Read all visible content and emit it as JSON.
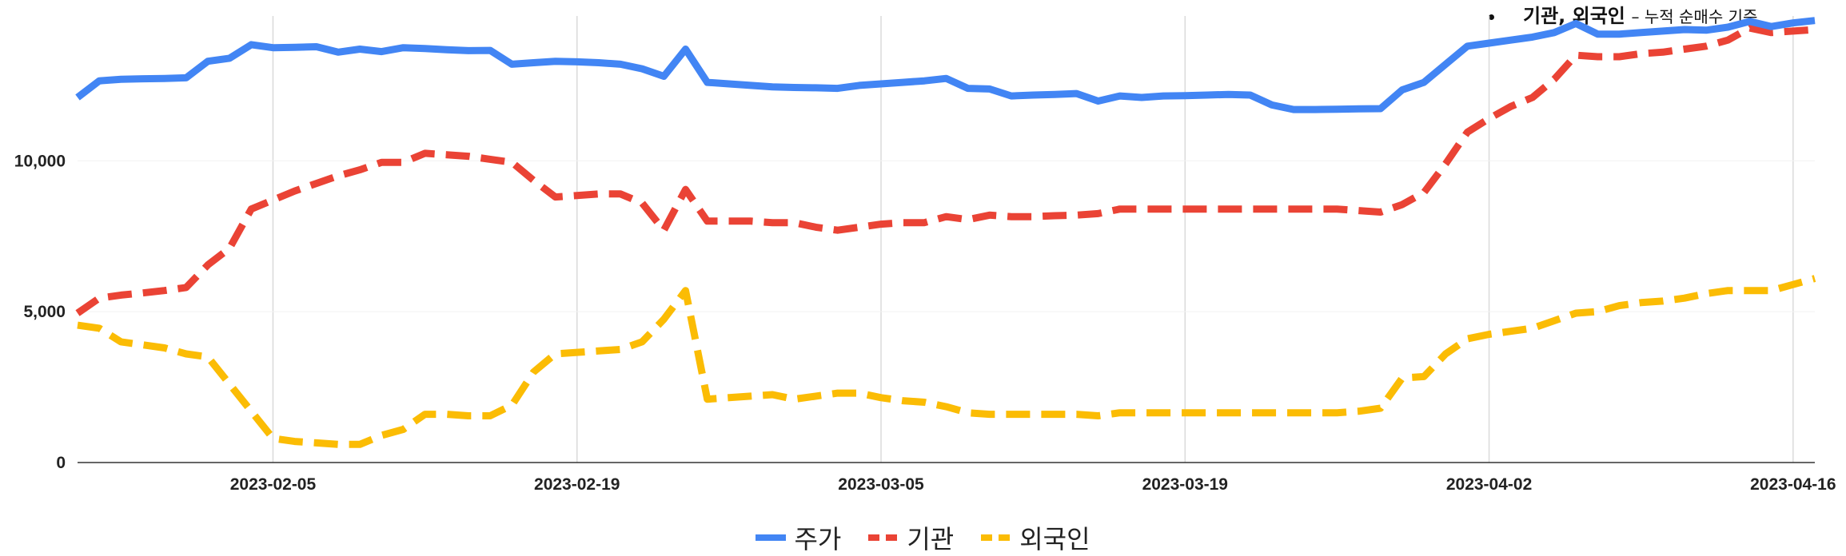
{
  "note": {
    "title": "기관, 외국인",
    "subtitle": "– 누적 순매수 기준"
  },
  "legend": {
    "price": "주가",
    "inst": "기관",
    "foreign": "외국인"
  },
  "colors": {
    "price": "#4285F4",
    "inst": "#EA4335",
    "foreign": "#FBBC04"
  },
  "chart_data": {
    "type": "line",
    "title": "",
    "xlabel": "",
    "ylabel": "",
    "x_range": [
      "2023-01-27",
      "2023-04-17"
    ],
    "ylim": [
      0,
      14800
    ],
    "y_ticks": [
      {
        "value": 0,
        "label": "0"
      },
      {
        "value": 5000,
        "label": "5,000"
      },
      {
        "value": 10000,
        "label": "10,000"
      }
    ],
    "x_ticks": [
      "2023-02-05",
      "2023-02-19",
      "2023-03-05",
      "2023-03-19",
      "2023-04-02",
      "2023-04-16"
    ],
    "grid": "vertical",
    "legend_position": "bottom",
    "series": [
      {
        "name": "주가",
        "color": "#4285F4",
        "style": "solid",
        "points": [
          [
            "2023-01-27",
            12100
          ],
          [
            "2023-01-28",
            12650
          ],
          [
            "2023-01-29",
            12700
          ],
          [
            "2023-01-30",
            12720
          ],
          [
            "2023-01-31",
            12730
          ],
          [
            "2023-02-01",
            12750
          ],
          [
            "2023-02-02",
            13300
          ],
          [
            "2023-02-03",
            13400
          ],
          [
            "2023-02-04",
            13850
          ],
          [
            "2023-02-05",
            13750
          ],
          [
            "2023-02-06",
            13760
          ],
          [
            "2023-02-07",
            13780
          ],
          [
            "2023-02-08",
            13600
          ],
          [
            "2023-02-09",
            13700
          ],
          [
            "2023-02-10",
            13620
          ],
          [
            "2023-02-11",
            13750
          ],
          [
            "2023-02-12",
            13720
          ],
          [
            "2023-02-13",
            13680
          ],
          [
            "2023-02-14",
            13650
          ],
          [
            "2023-02-15",
            13660
          ],
          [
            "2023-02-16",
            13200
          ],
          [
            "2023-02-17",
            13250
          ],
          [
            "2023-02-18",
            13300
          ],
          [
            "2023-02-19",
            13280
          ],
          [
            "2023-02-20",
            13250
          ],
          [
            "2023-02-21",
            13200
          ],
          [
            "2023-02-22",
            13050
          ],
          [
            "2023-02-23",
            12800
          ],
          [
            "2023-02-24",
            13700
          ],
          [
            "2023-02-25",
            12600
          ],
          [
            "2023-02-26",
            12550
          ],
          [
            "2023-02-27",
            12500
          ],
          [
            "2023-02-28",
            12450
          ],
          [
            "2023-03-01",
            12430
          ],
          [
            "2023-03-02",
            12420
          ],
          [
            "2023-03-03",
            12400
          ],
          [
            "2023-03-04",
            12500
          ],
          [
            "2023-03-05",
            12550
          ],
          [
            "2023-03-06",
            12600
          ],
          [
            "2023-03-07",
            12650
          ],
          [
            "2023-03-08",
            12730
          ],
          [
            "2023-03-09",
            12400
          ],
          [
            "2023-03-10",
            12380
          ],
          [
            "2023-03-11",
            12150
          ],
          [
            "2023-03-12",
            12180
          ],
          [
            "2023-03-13",
            12200
          ],
          [
            "2023-03-14",
            12230
          ],
          [
            "2023-03-15",
            11980
          ],
          [
            "2023-03-16",
            12150
          ],
          [
            "2023-03-17",
            12100
          ],
          [
            "2023-03-18",
            12150
          ],
          [
            "2023-03-19",
            12160
          ],
          [
            "2023-03-20",
            12180
          ],
          [
            "2023-03-21",
            12200
          ],
          [
            "2023-03-22",
            12180
          ],
          [
            "2023-03-23",
            11850
          ],
          [
            "2023-03-24",
            11700
          ],
          [
            "2023-03-25",
            11700
          ],
          [
            "2023-03-26",
            11710
          ],
          [
            "2023-03-27",
            11720
          ],
          [
            "2023-03-28",
            11730
          ],
          [
            "2023-03-29",
            12350
          ],
          [
            "2023-03-30",
            12600
          ],
          [
            "2023-03-31",
            13200
          ],
          [
            "2023-04-01",
            13800
          ],
          [
            "2023-04-02",
            13900
          ],
          [
            "2023-04-03",
            14000
          ],
          [
            "2023-04-04",
            14100
          ],
          [
            "2023-04-05",
            14250
          ],
          [
            "2023-04-06",
            14550
          ],
          [
            "2023-04-07",
            14200
          ],
          [
            "2023-04-08",
            14200
          ],
          [
            "2023-04-09",
            14250
          ],
          [
            "2023-04-10",
            14300
          ],
          [
            "2023-04-11",
            14350
          ],
          [
            "2023-04-12",
            14330
          ],
          [
            "2023-04-13",
            14430
          ],
          [
            "2023-04-14",
            14620
          ],
          [
            "2023-04-15",
            14450
          ],
          [
            "2023-04-16",
            14570
          ],
          [
            "2023-04-17",
            14650
          ]
        ]
      },
      {
        "name": "기관",
        "color": "#EA4335",
        "style": "dashed",
        "points": [
          [
            "2023-01-27",
            4950
          ],
          [
            "2023-01-28",
            5450
          ],
          [
            "2023-01-29",
            5550
          ],
          [
            "2023-01-30",
            5620
          ],
          [
            "2023-01-31",
            5700
          ],
          [
            "2023-02-01",
            5800
          ],
          [
            "2023-02-02",
            6550
          ],
          [
            "2023-02-03",
            7100
          ],
          [
            "2023-02-04",
            8400
          ],
          [
            "2023-02-05",
            8700
          ],
          [
            "2023-02-06",
            9000
          ],
          [
            "2023-02-07",
            9250
          ],
          [
            "2023-02-08",
            9500
          ],
          [
            "2023-02-09",
            9700
          ],
          [
            "2023-02-10",
            9950
          ],
          [
            "2023-02-11",
            9950
          ],
          [
            "2023-02-12",
            10250
          ],
          [
            "2023-02-13",
            10200
          ],
          [
            "2023-02-14",
            10150
          ],
          [
            "2023-02-15",
            10050
          ],
          [
            "2023-02-16",
            9950
          ],
          [
            "2023-02-17",
            9350
          ],
          [
            "2023-02-18",
            8800
          ],
          [
            "2023-02-19",
            8850
          ],
          [
            "2023-02-20",
            8900
          ],
          [
            "2023-02-21",
            8900
          ],
          [
            "2023-02-22",
            8600
          ],
          [
            "2023-02-23",
            7700
          ],
          [
            "2023-02-24",
            9050
          ],
          [
            "2023-02-25",
            8000
          ],
          [
            "2023-02-26",
            8000
          ],
          [
            "2023-02-27",
            8000
          ],
          [
            "2023-02-28",
            7950
          ],
          [
            "2023-03-01",
            7950
          ],
          [
            "2023-03-02",
            7800
          ],
          [
            "2023-03-03",
            7700
          ],
          [
            "2023-03-04",
            7800
          ],
          [
            "2023-03-05",
            7900
          ],
          [
            "2023-03-06",
            7950
          ],
          [
            "2023-03-07",
            7950
          ],
          [
            "2023-03-08",
            8150
          ],
          [
            "2023-03-09",
            8050
          ],
          [
            "2023-03-10",
            8200
          ],
          [
            "2023-03-11",
            8150
          ],
          [
            "2023-03-12",
            8150
          ],
          [
            "2023-03-13",
            8180
          ],
          [
            "2023-03-14",
            8200
          ],
          [
            "2023-03-15",
            8250
          ],
          [
            "2023-03-16",
            8400
          ],
          [
            "2023-03-17",
            8400
          ],
          [
            "2023-03-18",
            8400
          ],
          [
            "2023-03-19",
            8400
          ],
          [
            "2023-03-20",
            8400
          ],
          [
            "2023-03-21",
            8400
          ],
          [
            "2023-03-22",
            8400
          ],
          [
            "2023-03-23",
            8400
          ],
          [
            "2023-03-24",
            8400
          ],
          [
            "2023-03-25",
            8400
          ],
          [
            "2023-03-26",
            8400
          ],
          [
            "2023-03-27",
            8350
          ],
          [
            "2023-03-28",
            8300
          ],
          [
            "2023-03-29",
            8550
          ],
          [
            "2023-03-30",
            8950
          ],
          [
            "2023-03-31",
            9900
          ],
          [
            "2023-04-01",
            10950
          ],
          [
            "2023-04-02",
            11400
          ],
          [
            "2023-04-03",
            11800
          ],
          [
            "2023-04-04",
            12100
          ],
          [
            "2023-04-05",
            12700
          ],
          [
            "2023-04-06",
            13500
          ],
          [
            "2023-04-07",
            13450
          ],
          [
            "2023-04-08",
            13450
          ],
          [
            "2023-04-09",
            13550
          ],
          [
            "2023-04-10",
            13600
          ],
          [
            "2023-04-11",
            13700
          ],
          [
            "2023-04-12",
            13800
          ],
          [
            "2023-04-13",
            14000
          ],
          [
            "2023-04-14",
            14400
          ],
          [
            "2023-04-15",
            14250
          ],
          [
            "2023-04-16",
            14300
          ],
          [
            "2023-04-17",
            14350
          ]
        ]
      },
      {
        "name": "외국인",
        "color": "#FBBC04",
        "style": "dashed",
        "points": [
          [
            "2023-01-27",
            4550
          ],
          [
            "2023-01-28",
            4450
          ],
          [
            "2023-01-29",
            4000
          ],
          [
            "2023-01-30",
            3900
          ],
          [
            "2023-01-31",
            3800
          ],
          [
            "2023-02-01",
            3600
          ],
          [
            "2023-02-02",
            3500
          ],
          [
            "2023-02-03",
            2600
          ],
          [
            "2023-02-04",
            1700
          ],
          [
            "2023-02-05",
            800
          ],
          [
            "2023-02-06",
            700
          ],
          [
            "2023-02-07",
            650
          ],
          [
            "2023-02-08",
            600
          ],
          [
            "2023-02-09",
            600
          ],
          [
            "2023-02-10",
            900
          ],
          [
            "2023-02-11",
            1100
          ],
          [
            "2023-02-12",
            1600
          ],
          [
            "2023-02-13",
            1600
          ],
          [
            "2023-02-14",
            1550
          ],
          [
            "2023-02-15",
            1550
          ],
          [
            "2023-02-16",
            1900
          ],
          [
            "2023-02-17",
            3000
          ],
          [
            "2023-02-18",
            3600
          ],
          [
            "2023-02-19",
            3650
          ],
          [
            "2023-02-20",
            3700
          ],
          [
            "2023-02-21",
            3750
          ],
          [
            "2023-02-22",
            4000
          ],
          [
            "2023-02-23",
            4750
          ],
          [
            "2023-02-24",
            5700
          ],
          [
            "2023-02-25",
            2100
          ],
          [
            "2023-02-26",
            2150
          ],
          [
            "2023-02-27",
            2200
          ],
          [
            "2023-02-28",
            2250
          ],
          [
            "2023-03-01",
            2100
          ],
          [
            "2023-03-02",
            2200
          ],
          [
            "2023-03-03",
            2300
          ],
          [
            "2023-03-04",
            2300
          ],
          [
            "2023-03-05",
            2150
          ],
          [
            "2023-03-06",
            2050
          ],
          [
            "2023-03-07",
            2000
          ],
          [
            "2023-03-08",
            1850
          ],
          [
            "2023-03-09",
            1650
          ],
          [
            "2023-03-10",
            1600
          ],
          [
            "2023-03-11",
            1600
          ],
          [
            "2023-03-12",
            1600
          ],
          [
            "2023-03-13",
            1600
          ],
          [
            "2023-03-14",
            1600
          ],
          [
            "2023-03-15",
            1550
          ],
          [
            "2023-03-16",
            1650
          ],
          [
            "2023-03-17",
            1650
          ],
          [
            "2023-03-18",
            1650
          ],
          [
            "2023-03-19",
            1650
          ],
          [
            "2023-03-20",
            1650
          ],
          [
            "2023-03-21",
            1650
          ],
          [
            "2023-03-22",
            1650
          ],
          [
            "2023-03-23",
            1650
          ],
          [
            "2023-03-24",
            1650
          ],
          [
            "2023-03-25",
            1650
          ],
          [
            "2023-03-26",
            1650
          ],
          [
            "2023-03-27",
            1700
          ],
          [
            "2023-03-28",
            1800
          ],
          [
            "2023-03-29",
            2800
          ],
          [
            "2023-03-30",
            2850
          ],
          [
            "2023-03-31",
            3600
          ],
          [
            "2023-04-01",
            4100
          ],
          [
            "2023-04-02",
            4250
          ],
          [
            "2023-04-03",
            4350
          ],
          [
            "2023-04-04",
            4450
          ],
          [
            "2023-04-05",
            4700
          ],
          [
            "2023-04-06",
            4950
          ],
          [
            "2023-04-07",
            5000
          ],
          [
            "2023-04-08",
            5200
          ],
          [
            "2023-04-09",
            5300
          ],
          [
            "2023-04-10",
            5350
          ],
          [
            "2023-04-11",
            5450
          ],
          [
            "2023-04-12",
            5600
          ],
          [
            "2023-04-13",
            5700
          ],
          [
            "2023-04-14",
            5700
          ],
          [
            "2023-04-15",
            5700
          ],
          [
            "2023-04-16",
            5900
          ],
          [
            "2023-04-17",
            6100
          ]
        ]
      }
    ]
  }
}
